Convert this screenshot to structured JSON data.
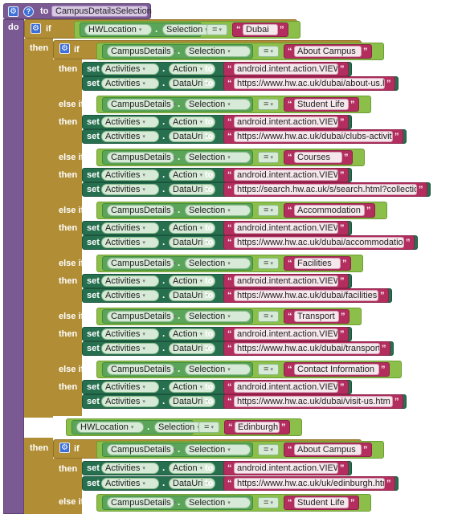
{
  "procedure": {
    "to_label": "to",
    "name": "CampusDetailsSelection",
    "do_label": "do"
  },
  "keywords": {
    "if": "if",
    "then": "then",
    "else_if": "else if",
    "set": "set",
    "to": "to",
    "eq": "=",
    "dot": "."
  },
  "outer_if": {
    "component": "HWLocation",
    "property": "Selection",
    "value": "Dubai"
  },
  "dubai_branches": [
    {
      "component": "CampusDetails",
      "property": "Selection",
      "value": "About Campus",
      "set1": {
        "component": "Activities",
        "property": "Action",
        "value": "android.intent.action.VIEW"
      },
      "set2": {
        "component": "Activities",
        "property": "DataUri",
        "value": "https://www.hw.ac.uk/dubai/about-us.htm"
      }
    },
    {
      "component": "CampusDetails",
      "property": "Selection",
      "value": "Student Life",
      "set1": {
        "component": "Activities",
        "property": "Action",
        "value": "android.intent.action.VIEW"
      },
      "set2": {
        "component": "Activities",
        "property": "DataUri",
        "value": "https://www.hw.ac.uk/dubai/clubs-activities.htm"
      }
    },
    {
      "component": "CampusDetails",
      "property": "Selection",
      "value": "Courses",
      "set1": {
        "component": "Activities",
        "property": "Action",
        "value": "android.intent.action.VIEW"
      },
      "set2": {
        "component": "Activities",
        "property": "DataUri",
        "value": "https://search.hw.ac.uk/s/search.html?collection..."
      }
    },
    {
      "component": "CampusDetails",
      "property": "Selection",
      "value": "Accommodation",
      "set1": {
        "component": "Activities",
        "property": "Action",
        "value": "android.intent.action.VIEW"
      },
      "set2": {
        "component": "Activities",
        "property": "DataUri",
        "value": "https://www.hw.ac.uk/dubai/accommodation.htm"
      }
    },
    {
      "component": "CampusDetails",
      "property": "Selection",
      "value": "Facilities",
      "set1": {
        "component": "Activities",
        "property": "Action",
        "value": "android.intent.action.VIEW"
      },
      "set2": {
        "component": "Activities",
        "property": "DataUri",
        "value": "https://www.hw.ac.uk/dubai/facilities.htm"
      }
    },
    {
      "component": "CampusDetails",
      "property": "Selection",
      "value": "Transport",
      "set1": {
        "component": "Activities",
        "property": "Action",
        "value": "android.intent.action.VIEW"
      },
      "set2": {
        "component": "Activities",
        "property": "DataUri",
        "value": "https://www.hw.ac.uk/dubai/transport.htm"
      }
    },
    {
      "component": "CampusDetails",
      "property": "Selection",
      "value": "Contact Information",
      "set1": {
        "component": "Activities",
        "property": "Action",
        "value": "android.intent.action.VIEW"
      },
      "set2": {
        "component": "Activities",
        "property": "DataUri",
        "value": "https://www.hw.ac.uk/dubai/visit-us.htm"
      }
    }
  ],
  "outer_elseif": {
    "component": "HWLocation",
    "property": "Selection",
    "value": "Edinburgh"
  },
  "edinburgh_branches": [
    {
      "component": "CampusDetails",
      "property": "Selection",
      "value": "About Campus",
      "set1": {
        "component": "Activities",
        "property": "Action",
        "value": "android.intent.action.VIEW"
      },
      "set2": {
        "component": "Activities",
        "property": "DataUri",
        "value": "https://www.hw.ac.uk/uk/edinburgh.htm"
      }
    },
    {
      "component": "CampusDetails",
      "property": "Selection",
      "value": "Student Life"
    }
  ],
  "colors": {
    "procedure": "#7b5a93",
    "control": "#b18e35",
    "component_getter": "#5ba55b",
    "logic_compare": "#8cbf4a",
    "setter": "#266f4f",
    "text_literal": "#b32d5e",
    "mutator_icon": "#3d6fd8"
  },
  "icons": {
    "mutator": "gear-icon",
    "help": "help-icon"
  }
}
